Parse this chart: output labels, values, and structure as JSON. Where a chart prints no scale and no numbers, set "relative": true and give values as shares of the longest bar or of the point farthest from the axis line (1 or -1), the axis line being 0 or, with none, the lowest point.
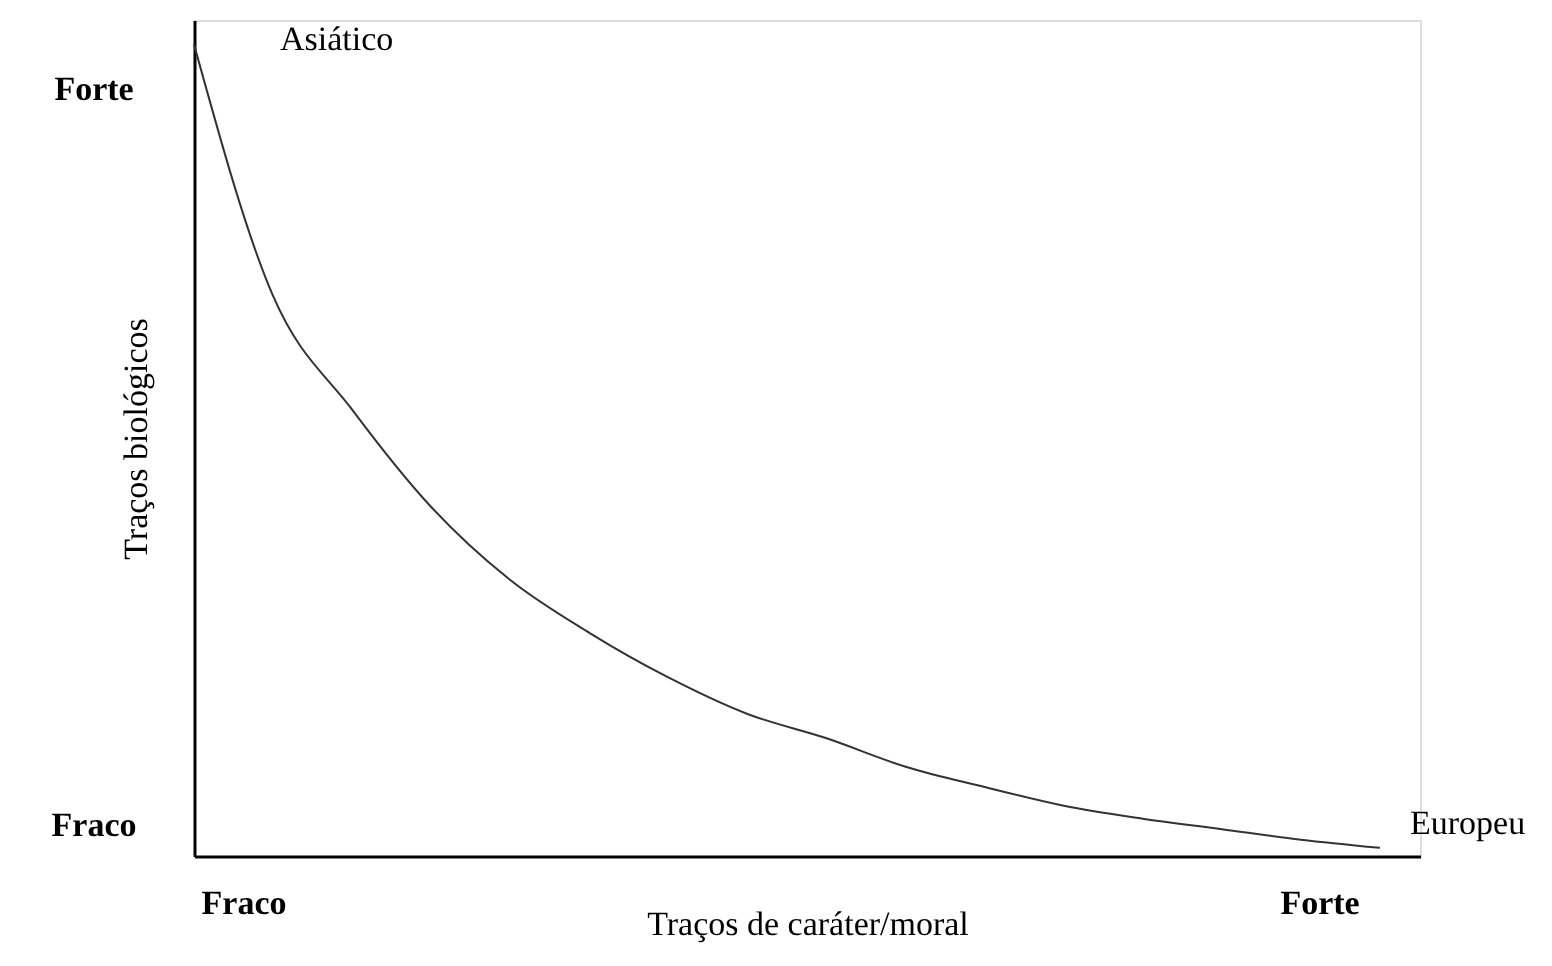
{
  "chart_data": {
    "type": "line",
    "relative": true,
    "xlabel": "Traços de caráter/moral",
    "ylabel": "Traços biológicos",
    "categories": [
      null,
      null,
      null,
      null,
      null,
      null,
      null,
      null,
      null,
      null,
      null,
      null,
      null,
      null,
      null,
      null
    ],
    "values": [
      1,
      0.69,
      0.55,
      0.43,
      0.34,
      0.275,
      0.22,
      0.175,
      0.145,
      0.11,
      0.085,
      0.062,
      0.046,
      0.033,
      0.02,
      0.01
    ],
    "color": "#333333",
    "annotations": [
      "Asiático",
      "Europeu",
      "Forte",
      "Fraco",
      "Fraco",
      "Forte"
    ],
    "grid": false,
    "marker": "none",
    "line_style": "solid"
  }
}
